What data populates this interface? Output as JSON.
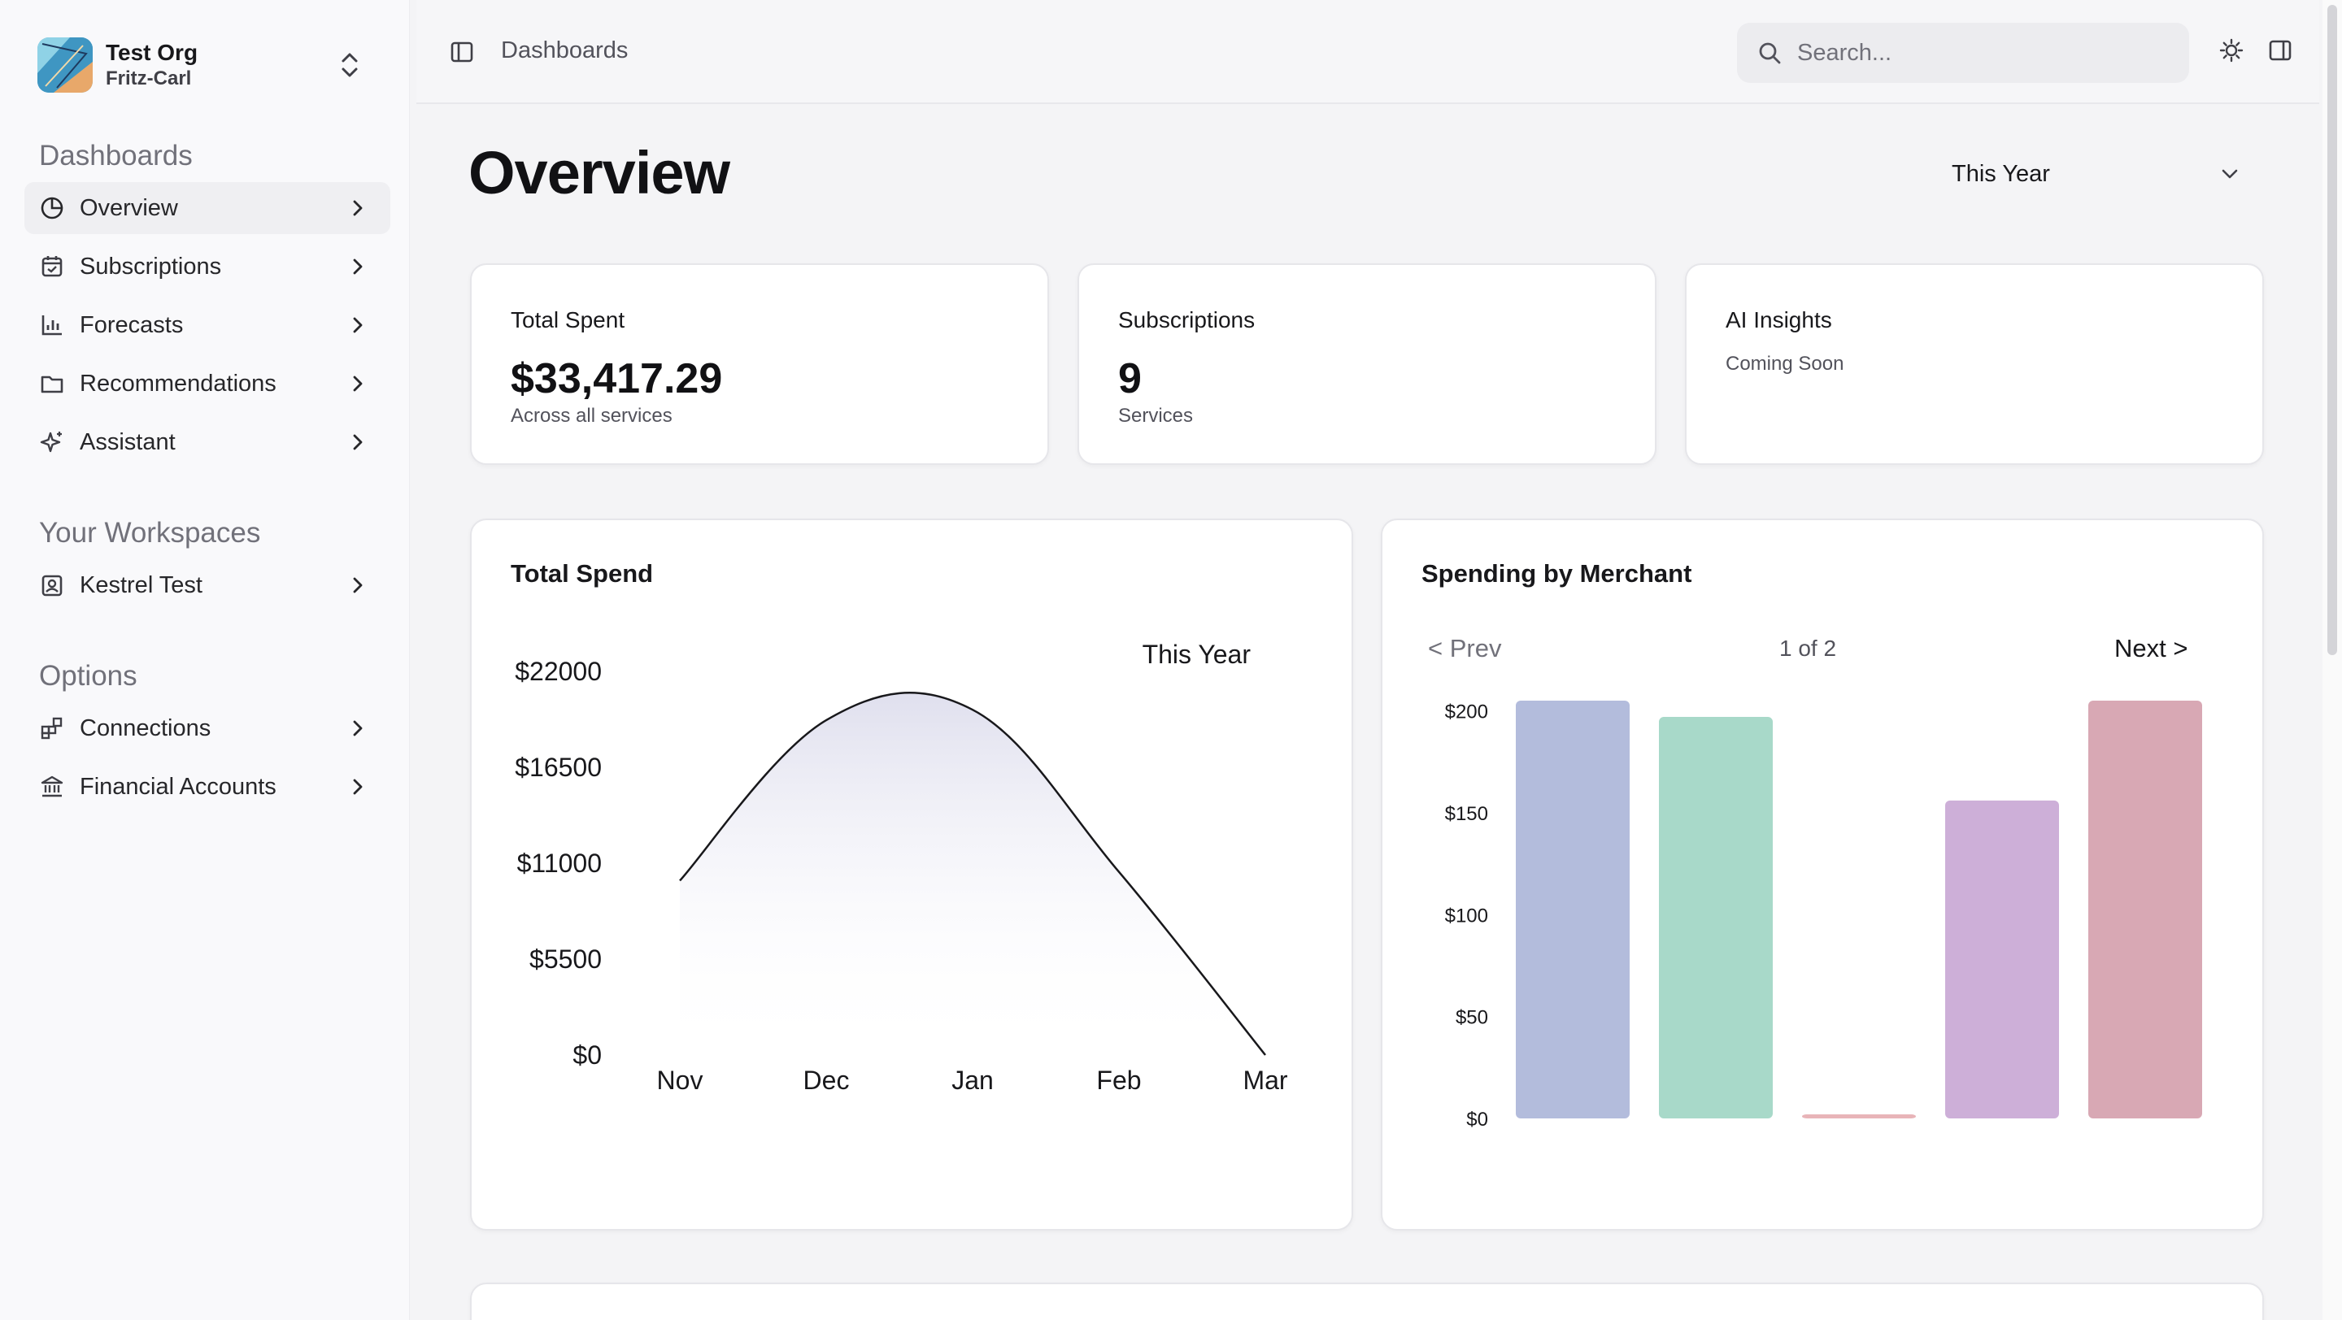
{
  "org": {
    "name": "Test Org",
    "user": "Fritz-Carl"
  },
  "sidebar": {
    "dashboards_title": "Dashboards",
    "dashboards": [
      {
        "label": "Overview",
        "icon": "pie-chart-icon",
        "active": true
      },
      {
        "label": "Subscriptions",
        "icon": "calendar-icon"
      },
      {
        "label": "Forecasts",
        "icon": "bar-chart-icon"
      },
      {
        "label": "Recommendations",
        "icon": "folder-icon"
      },
      {
        "label": "Assistant",
        "icon": "sparkles-icon"
      }
    ],
    "workspaces_title": "Your Workspaces",
    "workspaces": [
      {
        "label": "Kestrel Test",
        "icon": "contact-icon"
      }
    ],
    "options_title": "Options",
    "options": [
      {
        "label": "Connections",
        "icon": "blocks-icon"
      },
      {
        "label": "Financial Accounts",
        "icon": "bank-icon"
      }
    ]
  },
  "header": {
    "breadcrumb": "Dashboards",
    "search_placeholder": "Search..."
  },
  "main": {
    "title": "Overview",
    "period": "This Year",
    "stats": [
      {
        "label": "Total Spent",
        "value": "$33,417.29",
        "sub": "Across all services"
      },
      {
        "label": "Subscriptions",
        "value": "9",
        "sub": "Services"
      },
      {
        "label": "AI Insights",
        "sub": "Coming Soon"
      }
    ],
    "total_spend": {
      "title": "Total Spend",
      "legend": "This Year"
    },
    "merchant": {
      "title": "Spending by Merchant",
      "prev": "< Prev",
      "page_info": "1 of 2",
      "next": "Next >"
    }
  },
  "colors": {
    "merchant_bars": [
      "#b3bcdc",
      "#a8d9c9",
      "#e8b4b8",
      "#cdafd8",
      "#d8a8b4"
    ],
    "line": "#18181b"
  },
  "chart_data": [
    {
      "type": "area",
      "title": "Total Spend",
      "categories": [
        "Nov",
        "Dec",
        "Jan",
        "Feb",
        "Mar"
      ],
      "series": [
        {
          "name": "This Year",
          "values": [
            10000,
            19200,
            19800,
            10500,
            0
          ]
        }
      ],
      "yticks": [
        "$0",
        "$5500",
        "$11000",
        "$16500",
        "$22000"
      ],
      "ylim": [
        0,
        22000
      ],
      "grid": false,
      "legend": "top-right"
    },
    {
      "type": "bar",
      "title": "Spending by Merchant",
      "categories": [
        "",
        "",
        "",
        "",
        ""
      ],
      "values": [
        205,
        197,
        2,
        156,
        205
      ],
      "yticks": [
        "$0",
        "$50",
        "$100",
        "$150",
        "$200"
      ],
      "ylim": [
        0,
        205
      ],
      "grid": false
    }
  ]
}
